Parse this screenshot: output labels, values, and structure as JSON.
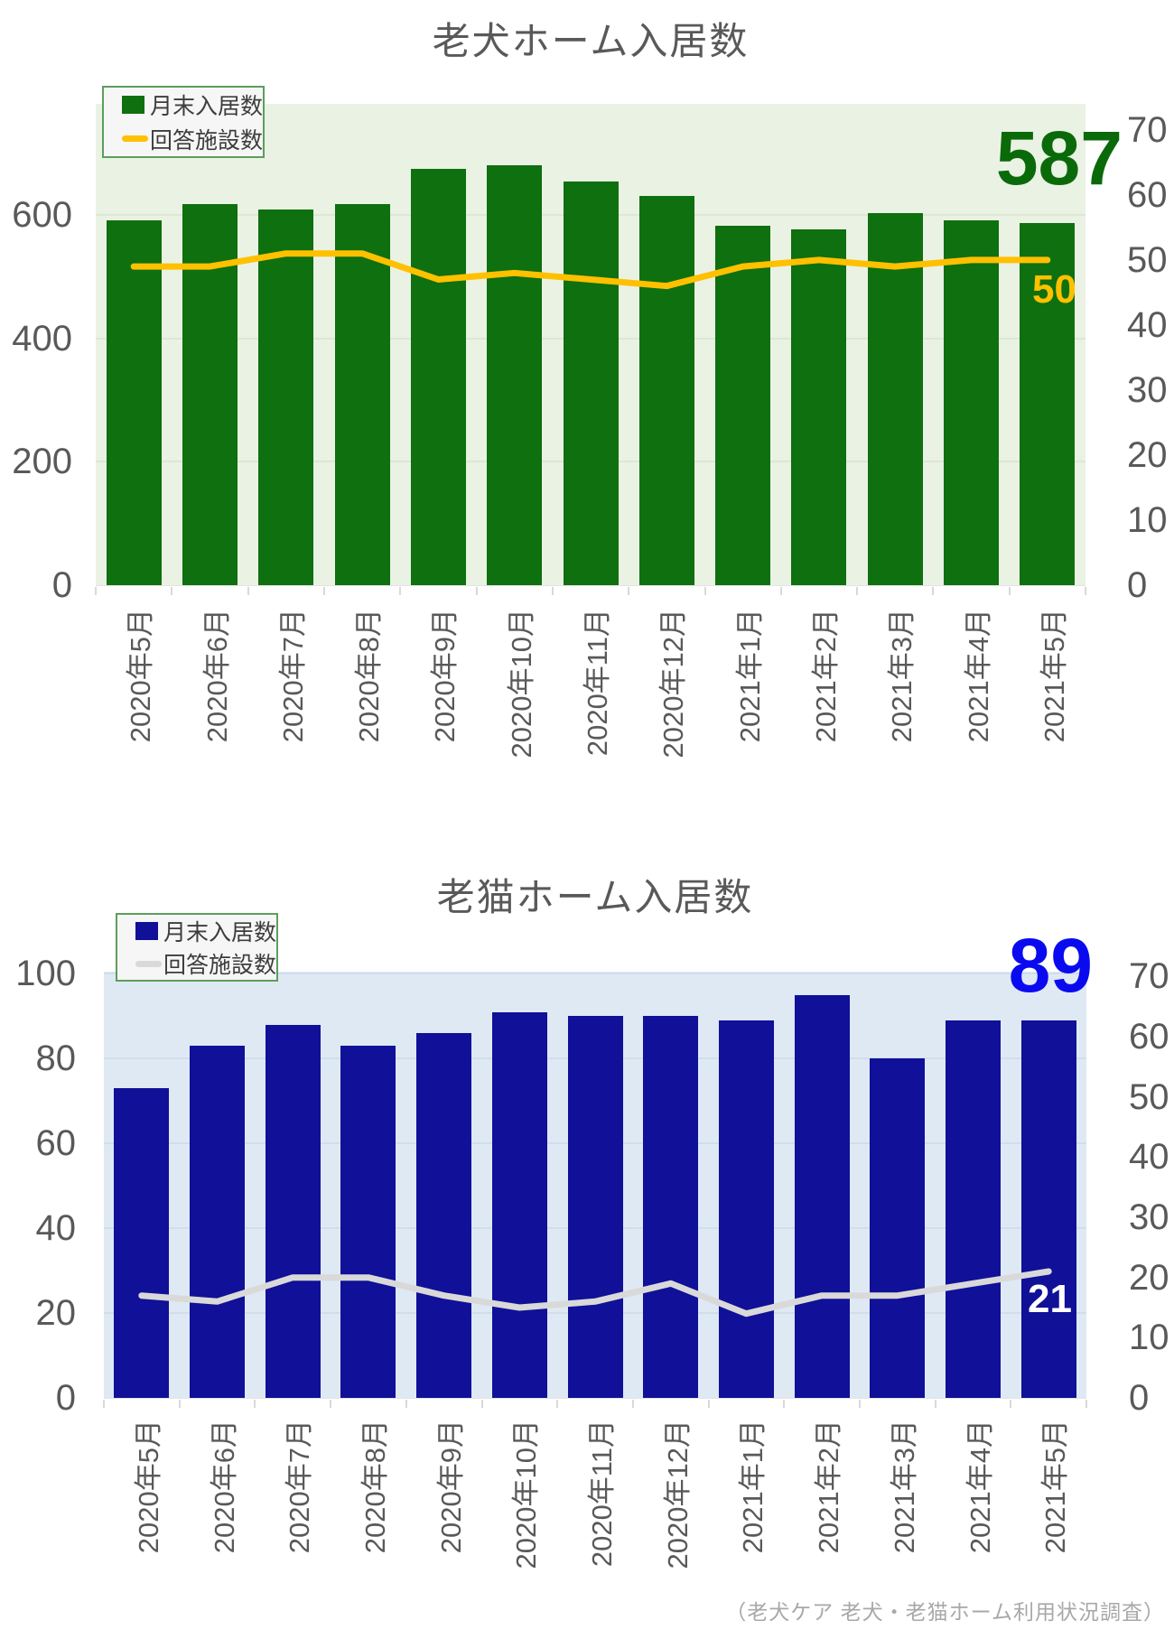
{
  "page": {
    "source_note": "（老犬ケア 老犬・老猫ホーム利用状況調査）"
  },
  "chart_data": [
    {
      "type": "bar+line",
      "title": "老犬ホーム入居数",
      "categories": [
        "2020年5月",
        "2020年6月",
        "2020年7月",
        "2020年8月",
        "2020年9月",
        "2020年10月",
        "2020年11月",
        "2020年12月",
        "2021年1月",
        "2021年2月",
        "2021年3月",
        "2021年4月",
        "2021年5月"
      ],
      "series": [
        {
          "name": "月末入居数",
          "type": "bar",
          "axis": "left",
          "values": [
            591,
            618,
            609,
            618,
            675,
            680,
            654,
            631,
            582,
            577,
            603,
            591,
            587
          ]
        },
        {
          "name": "回答施設数",
          "type": "line",
          "axis": "right",
          "values": [
            49,
            49,
            51,
            51,
            47,
            48,
            47,
            46,
            49,
            50,
            49,
            50,
            50
          ]
        }
      ],
      "left_axis": {
        "ticks": [
          0,
          200,
          400,
          600
        ],
        "range": [
          0,
          780
        ]
      },
      "right_axis": {
        "ticks": [
          0,
          10,
          20,
          30,
          40,
          50,
          60,
          70
        ],
        "range": [
          0,
          74
        ]
      },
      "grid": true,
      "legend_position": "top-left",
      "legend": [
        {
          "label": "月末入居数",
          "swatch": "bar"
        },
        {
          "label": "回答施設数",
          "swatch": "line"
        }
      ],
      "annotations": {
        "final_bar_value": "587",
        "final_line_value": "50"
      },
      "colors": {
        "bar": "#0E700E",
        "line": "#FFC000",
        "plot_bg": "#EAF2E4",
        "gridline": "#DCE7D4",
        "big_number": "#0A6A0A",
        "line_label": "#FFC000",
        "legend_border": "#5C9E5C",
        "legend_bg": "#F6F6F6"
      }
    },
    {
      "type": "bar+line",
      "title": "老猫ホーム入居数",
      "categories": [
        "2020年5月",
        "2020年6月",
        "2020年7月",
        "2020年8月",
        "2020年9月",
        "2020年10月",
        "2020年11月",
        "2020年12月",
        "2021年1月",
        "2021年2月",
        "2021年3月",
        "2021年4月",
        "2021年5月"
      ],
      "series": [
        {
          "name": "月末入居数",
          "type": "bar",
          "axis": "left",
          "values": [
            73,
            83,
            88,
            83,
            86,
            91,
            90,
            90,
            89,
            95,
            80,
            89,
            89
          ]
        },
        {
          "name": "回答施設数",
          "type": "line",
          "axis": "right",
          "values": [
            17,
            16,
            20,
            20,
            17,
            15,
            16,
            19,
            14,
            17,
            17,
            19,
            21
          ]
        }
      ],
      "left_axis": {
        "ticks": [
          0,
          20,
          40,
          60,
          80,
          100
        ],
        "range": [
          0,
          100.5
        ]
      },
      "right_axis": {
        "ticks": [
          0,
          10,
          20,
          30,
          40,
          50,
          60,
          70
        ],
        "range": [
          0,
          70.8
        ]
      },
      "grid": true,
      "legend_position": "top-left",
      "legend": [
        {
          "label": "月末入居数",
          "swatch": "bar"
        },
        {
          "label": "回答施設数",
          "swatch": "line"
        }
      ],
      "annotations": {
        "final_bar_value": "89",
        "final_line_value": "21"
      },
      "colors": {
        "bar": "#101098",
        "line": "#D9D9D9",
        "plot_bg": "#DEE9F4",
        "gridline": "#D0DEEC",
        "big_number": "#0A0AF0",
        "line_label": "#FFFFFF",
        "legend_border": "#5C9E5C",
        "legend_bg": "#F6F6F6"
      }
    }
  ]
}
